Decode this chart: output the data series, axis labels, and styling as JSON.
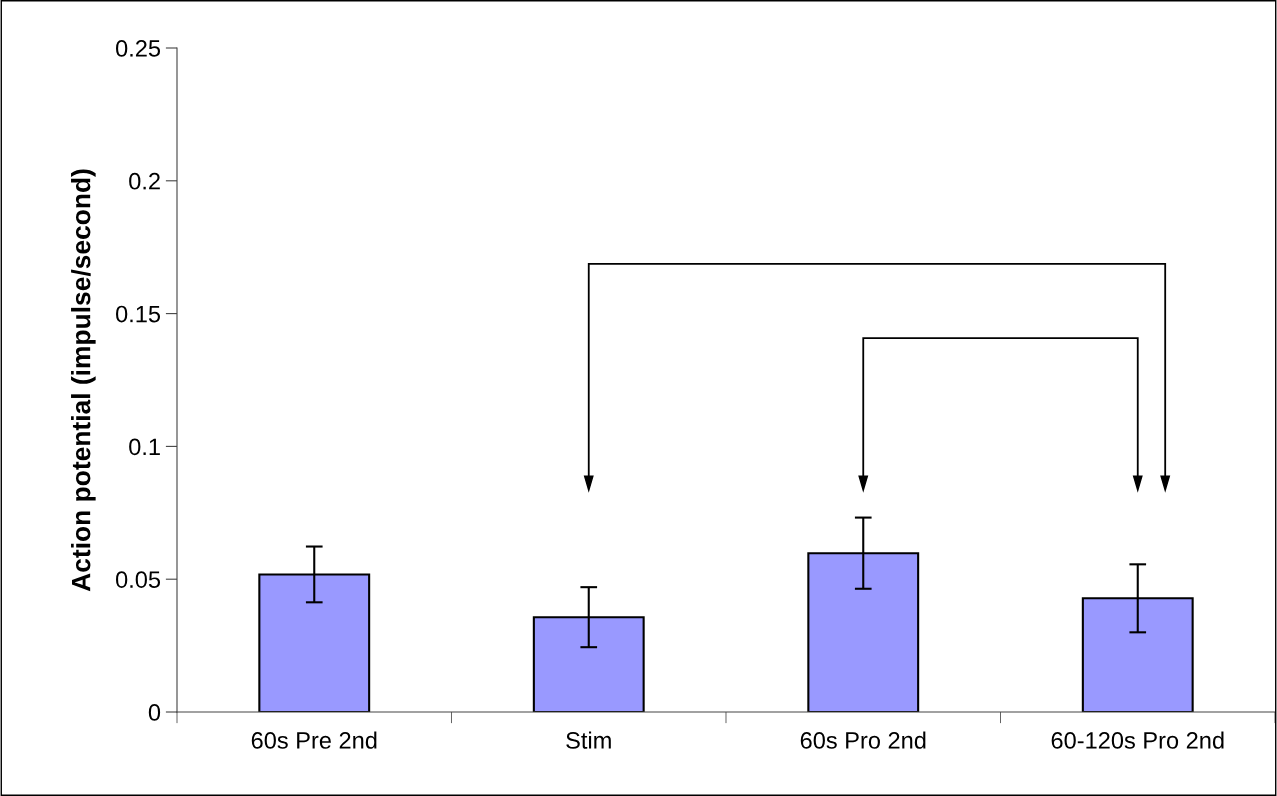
{
  "chart_data": {
    "type": "bar",
    "ylabel": "Action potential (impulse/second)",
    "categories": [
      "60s Pre 2nd",
      "Stim",
      "60s Pro 2nd",
      "60-120s Pro 2nd"
    ],
    "values": [
      0.0518,
      0.0357,
      0.0598,
      0.0428
    ],
    "errors": [
      0.0105,
      0.0113,
      0.0134,
      0.0128
    ],
    "color": "#9999ff",
    "ylim": [
      0,
      0.25
    ],
    "yticks": [
      0,
      0.05,
      0.1,
      0.15,
      0.2,
      0.25
    ],
    "grid": false,
    "legend": false
  }
}
